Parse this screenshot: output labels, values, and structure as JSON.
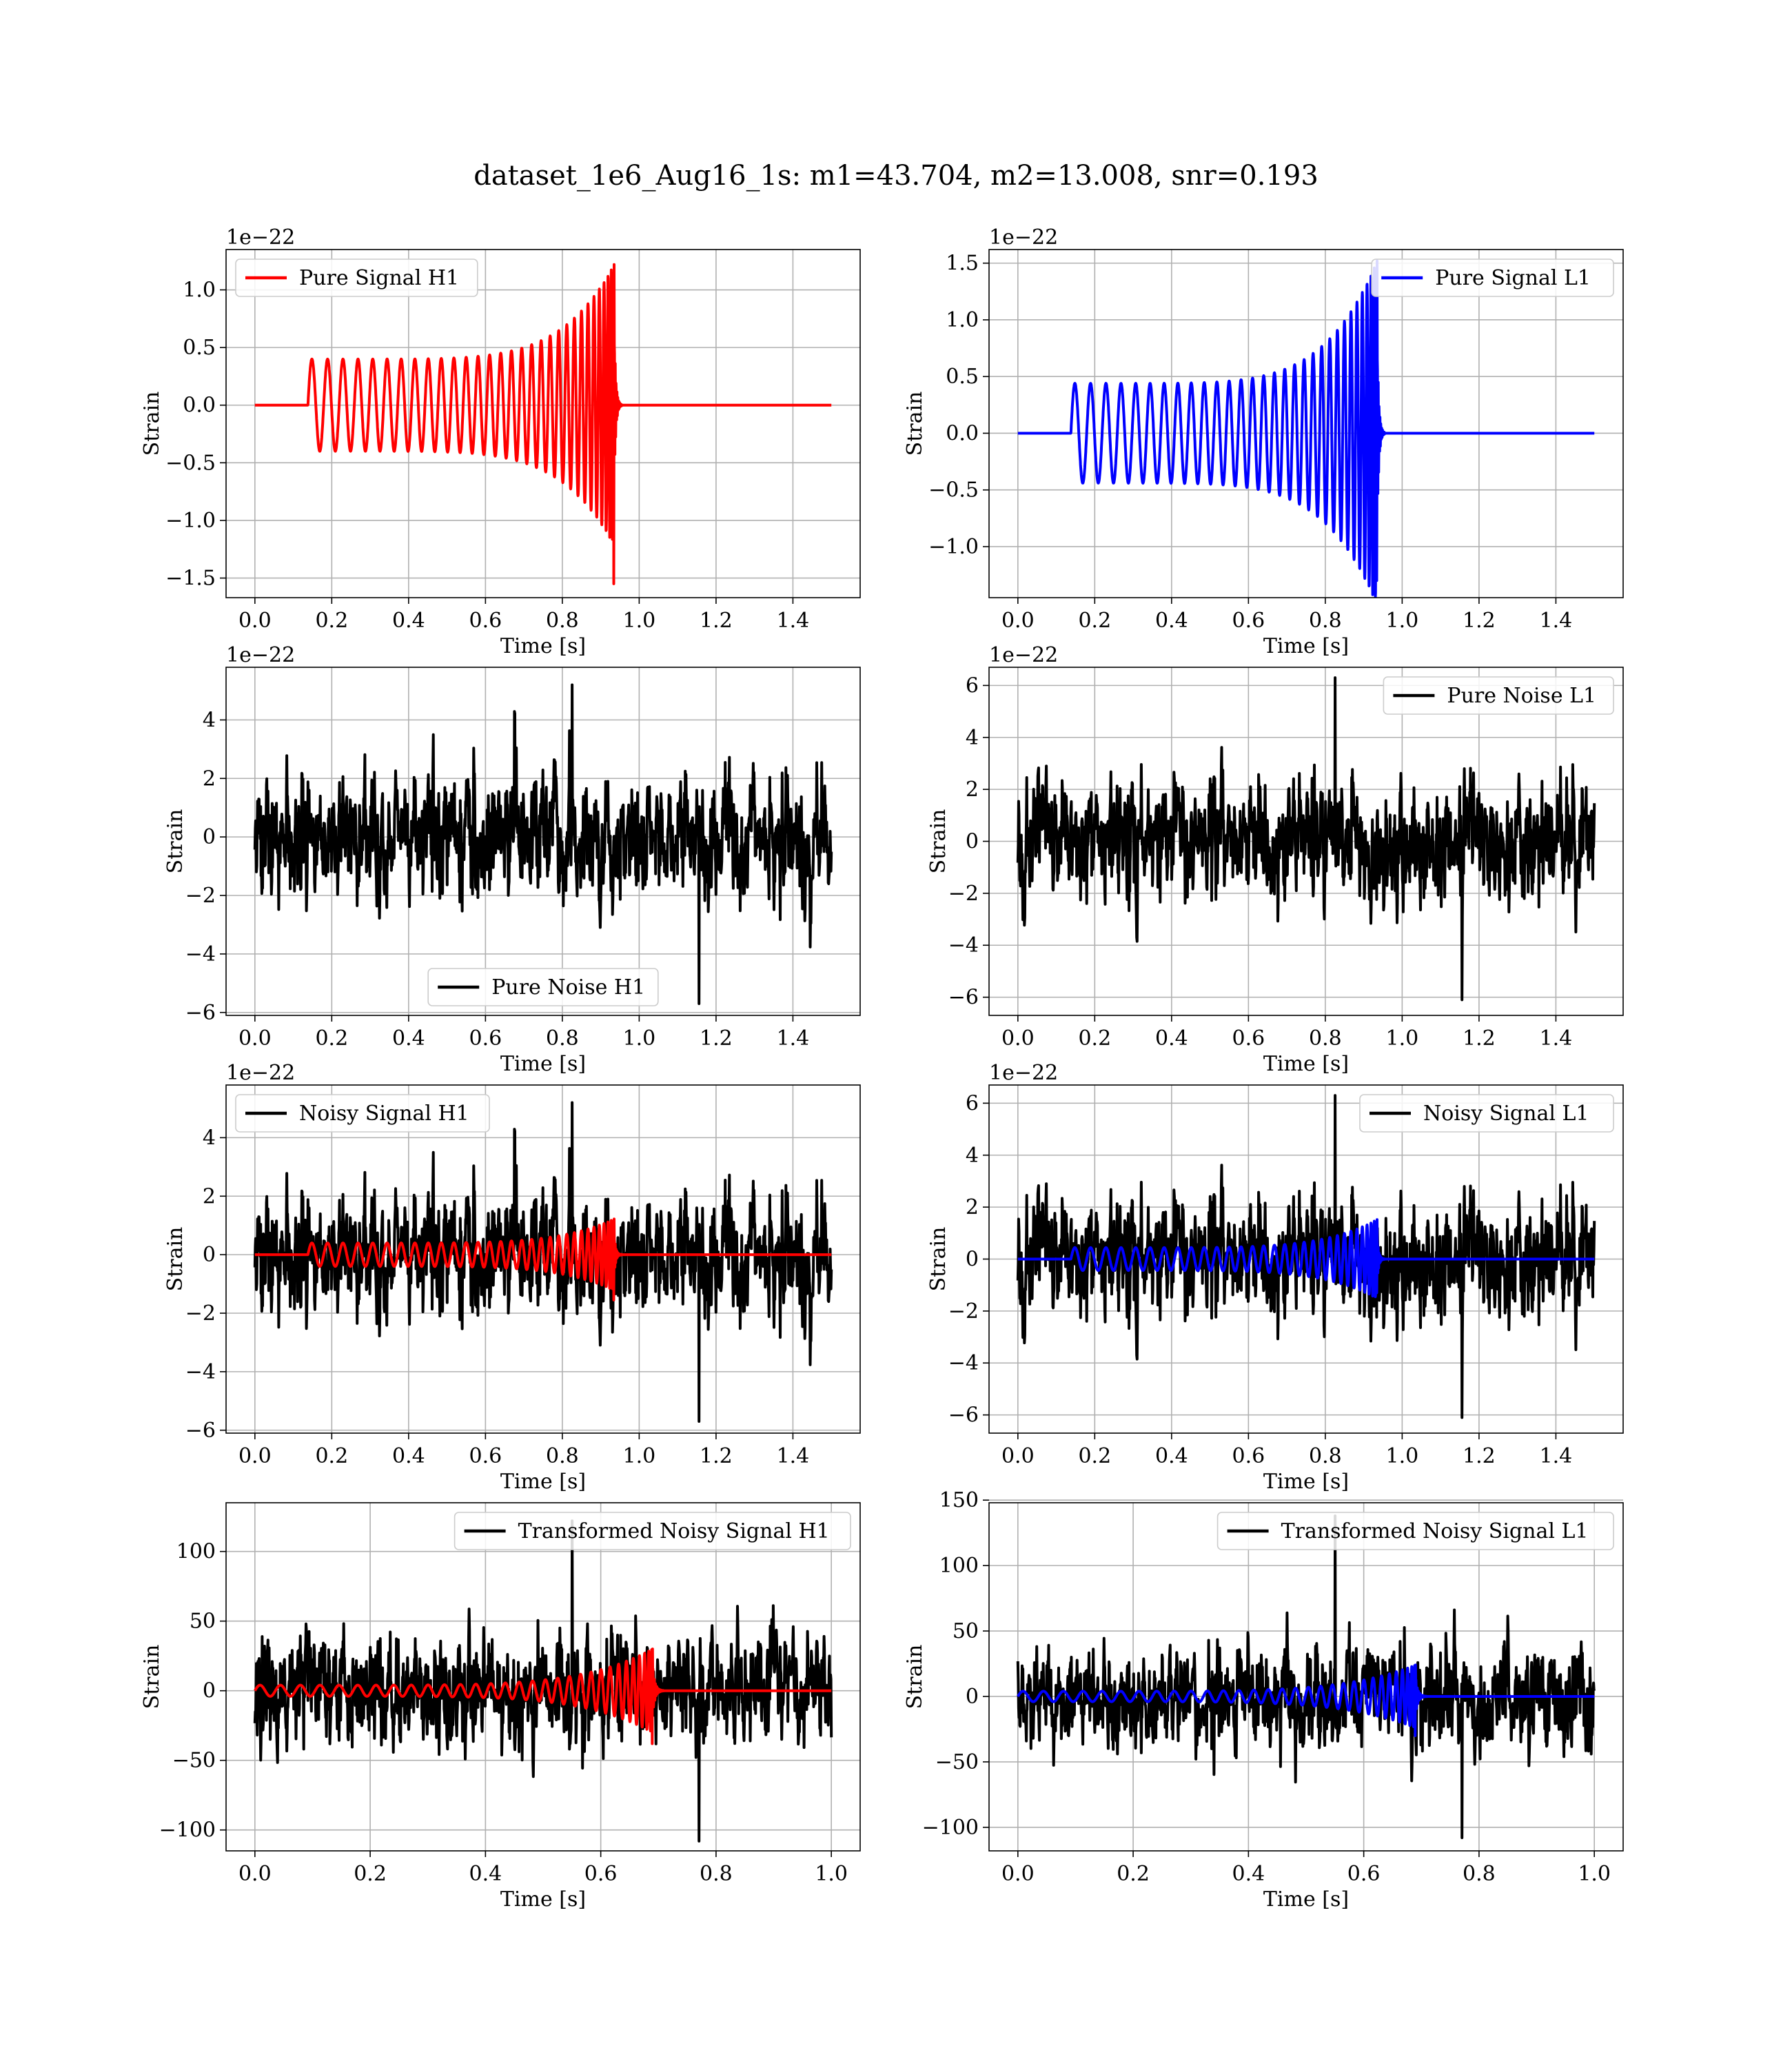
{
  "figure": {
    "title": "dataset_1e6_Aug16_1s: m1=43.704, m2=13.008, snr=0.193"
  },
  "colors": {
    "h1_signal": "#ff0000",
    "l1_signal": "#0000ff",
    "noise": "#000000",
    "grid": "#b0b0b0"
  },
  "chart_data": [
    {
      "type": "line",
      "panel": "pure-signal-h1",
      "xlabel": "Time [s]",
      "ylabel": "Strain",
      "offset_text": "1e−22",
      "xlim": [
        -0.075,
        1.575
      ],
      "ylim": [
        -1.67,
        1.35
      ],
      "xticks": [
        0.0,
        0.2,
        0.4,
        0.6,
        0.8,
        1.0,
        1.2,
        1.4
      ],
      "xtick_labels": [
        "0.0",
        "0.2",
        "0.4",
        "0.6",
        "0.8",
        "1.0",
        "1.2",
        "1.4"
      ],
      "yticks": [
        -1.5,
        -1.0,
        -0.5,
        0.0,
        0.5,
        1.0
      ],
      "ytick_labels": [
        "−1.5",
        "−1.0",
        "−0.5",
        "0.0",
        "0.5",
        "1.0"
      ],
      "legend": {
        "loc": "upper left",
        "entries": [
          {
            "label": "Pure Signal H1",
            "color": "#ff0000"
          }
        ]
      },
      "grid": true,
      "series": [
        {
          "name": "Pure Signal H1",
          "color": "#ff0000",
          "waveform": {
            "kind": "chirp",
            "t_start": 0.0,
            "t_end": 1.5,
            "onset": 0.138,
            "merger": 0.935,
            "amp_start": 0.4,
            "amp_peak": 1.22,
            "amp_min_peak": -1.55
          }
        }
      ]
    },
    {
      "type": "line",
      "panel": "pure-signal-l1",
      "xlabel": "Time [s]",
      "ylabel": "Strain",
      "offset_text": "1e−22",
      "xlim": [
        -0.075,
        1.575
      ],
      "ylim": [
        -1.45,
        1.62
      ],
      "xticks": [
        0.0,
        0.2,
        0.4,
        0.6,
        0.8,
        1.0,
        1.2,
        1.4
      ],
      "xtick_labels": [
        "0.0",
        "0.2",
        "0.4",
        "0.6",
        "0.8",
        "1.0",
        "1.2",
        "1.4"
      ],
      "yticks": [
        -1.0,
        -0.5,
        0.0,
        0.5,
        1.0,
        1.5
      ],
      "ytick_labels": [
        "−1.0",
        "−0.5",
        "0.0",
        "0.5",
        "1.0",
        "1.5"
      ],
      "legend": {
        "loc": "upper right",
        "entries": [
          {
            "label": "Pure Signal L1",
            "color": "#0000ff"
          }
        ]
      },
      "grid": true,
      "series": [
        {
          "name": "Pure Signal L1",
          "color": "#0000ff",
          "waveform": {
            "kind": "chirp",
            "t_start": 0.0,
            "t_end": 1.5,
            "onset": 0.138,
            "merger": 0.935,
            "amp_start": 0.44,
            "amp_peak": 1.52,
            "amp_min_peak": -1.3
          }
        }
      ]
    },
    {
      "type": "line",
      "panel": "pure-noise-h1",
      "xlabel": "Time [s]",
      "ylabel": "Strain",
      "offset_text": "1e−22",
      "xlim": [
        -0.075,
        1.575
      ],
      "ylim": [
        -6.1,
        5.8
      ],
      "xticks": [
        0.0,
        0.2,
        0.4,
        0.6,
        0.8,
        1.0,
        1.2,
        1.4
      ],
      "xtick_labels": [
        "0.0",
        "0.2",
        "0.4",
        "0.6",
        "0.8",
        "1.0",
        "1.2",
        "1.4"
      ],
      "yticks": [
        -6,
        -4,
        -2,
        0,
        2,
        4
      ],
      "ytick_labels": [
        "−6",
        "−4",
        "−2",
        "0",
        "2",
        "4"
      ],
      "legend": {
        "loc": "lower center",
        "entries": [
          {
            "label": "Pure Noise H1",
            "color": "#000000"
          }
        ]
      },
      "grid": true,
      "series": [
        {
          "name": "Pure Noise H1",
          "color": "#000000",
          "waveform": {
            "kind": "noise",
            "t_start": 0.0,
            "t_end": 1.5,
            "seed": 11,
            "sigma": 1.55,
            "max": 5.2,
            "min": -5.7
          }
        }
      ]
    },
    {
      "type": "line",
      "panel": "pure-noise-l1",
      "xlabel": "Time [s]",
      "ylabel": "Strain",
      "offset_text": "1e−22",
      "xlim": [
        -0.075,
        1.575
      ],
      "ylim": [
        -6.7,
        6.7
      ],
      "xticks": [
        0.0,
        0.2,
        0.4,
        0.6,
        0.8,
        1.0,
        1.2,
        1.4
      ],
      "xtick_labels": [
        "0.0",
        "0.2",
        "0.4",
        "0.6",
        "0.8",
        "1.0",
        "1.2",
        "1.4"
      ],
      "yticks": [
        -6,
        -4,
        -2,
        0,
        2,
        4,
        6
      ],
      "ytick_labels": [
        "−6",
        "−4",
        "−2",
        "0",
        "2",
        "4",
        "6"
      ],
      "legend": {
        "loc": "upper right",
        "entries": [
          {
            "label": "Pure Noise L1",
            "color": "#000000"
          }
        ]
      },
      "grid": true,
      "series": [
        {
          "name": "Pure Noise L1",
          "color": "#000000",
          "waveform": {
            "kind": "noise",
            "t_start": 0.0,
            "t_end": 1.5,
            "seed": 23,
            "sigma": 1.75,
            "max": 6.3,
            "min": -6.1
          }
        }
      ]
    },
    {
      "type": "line",
      "panel": "noisy-signal-h1",
      "xlabel": "Time [s]",
      "ylabel": "Strain",
      "offset_text": "1e−22",
      "xlim": [
        -0.075,
        1.575
      ],
      "ylim": [
        -6.1,
        5.8
      ],
      "xticks": [
        0.0,
        0.2,
        0.4,
        0.6,
        0.8,
        1.0,
        1.2,
        1.4
      ],
      "xtick_labels": [
        "0.0",
        "0.2",
        "0.4",
        "0.6",
        "0.8",
        "1.0",
        "1.2",
        "1.4"
      ],
      "yticks": [
        -6,
        -4,
        -2,
        0,
        2,
        4
      ],
      "ytick_labels": [
        "−6",
        "−4",
        "−2",
        "0",
        "2",
        "4"
      ],
      "legend": {
        "loc": "upper left",
        "entries": [
          {
            "label": "Noisy Signal H1",
            "color": "#000000"
          }
        ]
      },
      "grid": true,
      "series": [
        {
          "name": "Noisy Signal H1",
          "color": "#000000",
          "waveform": {
            "kind": "noise",
            "t_start": 0.0,
            "t_end": 1.5,
            "seed": 11,
            "sigma": 1.55,
            "max": 5.2,
            "min": -5.7
          }
        },
        {
          "color": "#ff0000",
          "waveform": {
            "kind": "chirp",
            "t_start": 0.0,
            "t_end": 1.5,
            "onset": 0.138,
            "merger": 0.935,
            "amp_start": 0.4,
            "amp_peak": 1.22,
            "amp_min_peak": -1.55
          }
        }
      ]
    },
    {
      "type": "line",
      "panel": "noisy-signal-l1",
      "xlabel": "Time [s]",
      "ylabel": "Strain",
      "offset_text": "1e−22",
      "xlim": [
        -0.075,
        1.575
      ],
      "ylim": [
        -6.7,
        6.7
      ],
      "xticks": [
        0.0,
        0.2,
        0.4,
        0.6,
        0.8,
        1.0,
        1.2,
        1.4
      ],
      "xtick_labels": [
        "0.0",
        "0.2",
        "0.4",
        "0.6",
        "0.8",
        "1.0",
        "1.2",
        "1.4"
      ],
      "yticks": [
        -6,
        -4,
        -2,
        0,
        2,
        4,
        6
      ],
      "ytick_labels": [
        "−6",
        "−4",
        "−2",
        "0",
        "2",
        "4",
        "6"
      ],
      "legend": {
        "loc": "upper right",
        "entries": [
          {
            "label": "Noisy Signal L1",
            "color": "#000000"
          }
        ]
      },
      "grid": true,
      "series": [
        {
          "name": "Noisy Signal L1",
          "color": "#000000",
          "waveform": {
            "kind": "noise",
            "t_start": 0.0,
            "t_end": 1.5,
            "seed": 23,
            "sigma": 1.75,
            "max": 6.3,
            "min": -6.1
          }
        },
        {
          "color": "#0000ff",
          "waveform": {
            "kind": "chirp",
            "t_start": 0.0,
            "t_end": 1.5,
            "onset": 0.138,
            "merger": 0.935,
            "amp_start": 0.44,
            "amp_peak": 1.52,
            "amp_min_peak": -1.3
          }
        }
      ]
    },
    {
      "type": "line",
      "panel": "transformed-noisy-signal-h1",
      "xlabel": "Time [s]",
      "ylabel": "Strain",
      "offset_text": "",
      "xlim": [
        -0.05,
        1.05
      ],
      "ylim": [
        -115,
        135
      ],
      "xticks": [
        0.0,
        0.2,
        0.4,
        0.6,
        0.8,
        1.0
      ],
      "xtick_labels": [
        "0.0",
        "0.2",
        "0.4",
        "0.6",
        "0.8",
        "1.0"
      ],
      "yticks": [
        -100,
        -50,
        0,
        50,
        100
      ],
      "ytick_labels": [
        "−100",
        "−50",
        "0",
        "50",
        "100"
      ],
      "legend": {
        "loc": "upper right",
        "entries": [
          {
            "label": "Transformed Noisy Signal H1",
            "color": "#000000"
          }
        ]
      },
      "grid": true,
      "series": [
        {
          "name": "Transformed Noisy Signal H1",
          "color": "#000000",
          "waveform": {
            "kind": "noise",
            "t_start": 0.0,
            "t_end": 1.0,
            "seed": 37,
            "sigma": 30,
            "max": 122,
            "min": -108
          }
        },
        {
          "color": "#ff0000",
          "waveform": {
            "kind": "chirp",
            "t_start": 0.0,
            "t_end": 1.0,
            "onset": 0.0,
            "merger": 0.69,
            "amp_start": 4,
            "amp_peak": 30,
            "amp_min_peak": -38
          }
        }
      ]
    },
    {
      "type": "line",
      "panel": "transformed-noisy-signal-l1",
      "xlabel": "Time [s]",
      "ylabel": "Strain",
      "offset_text": "",
      "xlim": [
        -0.05,
        1.05
      ],
      "ylim": [
        -118,
        148
      ],
      "xticks": [
        0.0,
        0.2,
        0.4,
        0.6,
        0.8,
        1.0
      ],
      "xtick_labels": [
        "0.0",
        "0.2",
        "0.4",
        "0.6",
        "0.8",
        "1.0"
      ],
      "yticks": [
        -100,
        -50,
        0,
        50,
        100,
        150
      ],
      "ytick_labels": [
        "−100",
        "−50",
        "0",
        "50",
        "100",
        "150"
      ],
      "legend": {
        "loc": "upper right",
        "entries": [
          {
            "label": "Transformed Noisy Signal L1",
            "color": "#000000"
          }
        ]
      },
      "grid": true,
      "series": [
        {
          "name": "Transformed Noisy Signal L1",
          "color": "#000000",
          "waveform": {
            "kind": "noise",
            "t_start": 0.0,
            "t_end": 1.0,
            "seed": 53,
            "sigma": 30,
            "max": 138,
            "min": -108
          }
        },
        {
          "color": "#0000ff",
          "waveform": {
            "kind": "chirp",
            "t_start": 0.0,
            "t_end": 1.0,
            "onset": 0.0,
            "merger": 0.69,
            "amp_start": 4,
            "amp_peak": 24,
            "amp_min_peak": -30
          }
        }
      ]
    }
  ]
}
